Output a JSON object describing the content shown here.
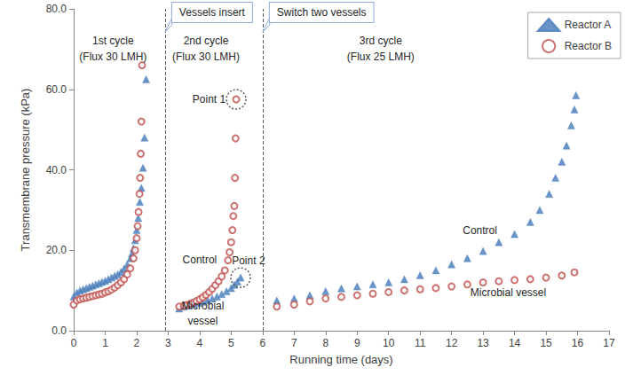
{
  "chart_data": {
    "type": "scatter",
    "x_label": "Running time (days)",
    "y_label": "Transmembrane pressure (kPa)",
    "xlim": [
      0,
      17
    ],
    "xticks": [
      0,
      1,
      2,
      3,
      4,
      5,
      6,
      7,
      8,
      9,
      10,
      11,
      12,
      13,
      14,
      15,
      16,
      17
    ],
    "ylim": [
      0,
      80
    ],
    "yticks": [
      {
        "value": 0,
        "label": "0.0"
      },
      {
        "value": 20,
        "label": "20.0"
      },
      {
        "value": 40,
        "label": "40.0"
      },
      {
        "value": 60,
        "label": "60.0"
      },
      {
        "value": 80,
        "label": "80.0"
      }
    ],
    "grid": false,
    "legend": "upper right",
    "series": [
      {
        "name": "Reactor A",
        "color": "#4f81bd",
        "marker": "triangle",
        "x": [
          0,
          0.1,
          0.2,
          0.3,
          0.4,
          0.5,
          0.6,
          0.7,
          0.8,
          0.9,
          1.0,
          1.1,
          1.2,
          1.3,
          1.4,
          1.5,
          1.6,
          1.7,
          1.8,
          1.85,
          1.9,
          1.95,
          2.0,
          2.05,
          2.1,
          2.15,
          2.2,
          2.25,
          2.3,
          3.35,
          3.5,
          3.65,
          3.8,
          3.95,
          4.1,
          4.25,
          4.4,
          4.55,
          4.7,
          4.85,
          5.0,
          5.1,
          5.2,
          5.3,
          6.45,
          7,
          7.5,
          8,
          8.5,
          9,
          9.5,
          10,
          10.5,
          11,
          11.5,
          12,
          12.5,
          13,
          13.5,
          14,
          14.5,
          14.8,
          15.1,
          15.3,
          15.5,
          15.65,
          15.8,
          15.9,
          15.95
        ],
        "values": [
          8.5,
          9.5,
          10,
          10.3,
          10.6,
          10.9,
          11.2,
          11.5,
          11.8,
          12.1,
          12.4,
          12.8,
          13.2,
          13.6,
          14.0,
          14.6,
          15.4,
          16.5,
          18.0,
          19.2,
          20.5,
          22.5,
          25.0,
          28.0,
          32.0,
          35.5,
          40.5,
          48.0,
          62.5,
          5.5,
          6.0,
          6.3,
          6.6,
          6.9,
          7.2,
          7.6,
          8.0,
          8.5,
          9.1,
          9.8,
          10.6,
          11.4,
          12.2,
          13.2,
          7.5,
          8.0,
          8.8,
          9.8,
          10.5,
          11.0,
          11.5,
          12.0,
          12.8,
          13.8,
          15.0,
          16.5,
          18.0,
          19.8,
          22.0,
          24.0,
          27.0,
          30.0,
          34.0,
          38.0,
          42.0,
          46.0,
          51.0,
          55.0,
          58.5
        ]
      },
      {
        "name": "Reactor B",
        "color": "#c0504d",
        "marker": "emptyCircle",
        "x": [
          0,
          0.1,
          0.2,
          0.3,
          0.4,
          0.5,
          0.6,
          0.7,
          0.8,
          0.9,
          1.0,
          1.1,
          1.2,
          1.3,
          1.4,
          1.5,
          1.6,
          1.7,
          1.8,
          1.9,
          1.95,
          2.0,
          2.03,
          2.06,
          2.09,
          2.11,
          2.13,
          2.15,
          2.17,
          3.35,
          3.5,
          3.6,
          3.7,
          3.8,
          3.9,
          4.0,
          4.1,
          4.2,
          4.3,
          4.4,
          4.5,
          4.6,
          4.7,
          4.8,
          4.9,
          4.95,
          5.0,
          5.04,
          5.07,
          5.1,
          5.12,
          5.14,
          5.16,
          6.45,
          7,
          7.5,
          8,
          8.5,
          9,
          9.5,
          10,
          10.5,
          11,
          11.5,
          12,
          12.5,
          13,
          13.5,
          14,
          14.5,
          15,
          15.5,
          15.9
        ],
        "values": [
          6.5,
          7.5,
          7.8,
          8.0,
          8.2,
          8.4,
          8.6,
          8.8,
          9.0,
          9.2,
          9.5,
          9.8,
          10.2,
          10.7,
          11.3,
          12.0,
          12.8,
          14.0,
          15.5,
          18.0,
          20.0,
          23.0,
          26.0,
          29.5,
          34.0,
          38.0,
          44.0,
          52.0,
          66.0,
          6.0,
          6.2,
          6.4,
          6.7,
          7.0,
          7.4,
          7.8,
          8.3,
          8.9,
          9.6,
          10.4,
          11.3,
          12.3,
          13.5,
          15.0,
          17.5,
          19.5,
          22.0,
          25.0,
          28.5,
          31.0,
          38.0,
          47.8,
          57.5,
          6.0,
          6.5,
          7.3,
          8.0,
          8.4,
          8.8,
          9.2,
          9.6,
          10.0,
          10.3,
          10.6,
          11.0,
          11.5,
          12.0,
          12.3,
          12.6,
          12.8,
          13.2,
          13.7,
          14.5
        ]
      }
    ],
    "cycle_boundaries": [
      {
        "x": 2.9,
        "label": "Vessels insert"
      },
      {
        "x": 6.0,
        "label": "Switch two vessels"
      }
    ],
    "annotations": [
      {
        "text": "1st cycle",
        "x": 1.25,
        "y": 72
      },
      {
        "text": "(Flux 30 LMH)",
        "x": 1.25,
        "y": 68
      },
      {
        "text": "2nd cycle",
        "x": 4.2,
        "y": 72
      },
      {
        "text": "(Flux 30 LMH)",
        "x": 4.2,
        "y": 68
      },
      {
        "text": "3rd cycle",
        "x": 9.75,
        "y": 72
      },
      {
        "text": "(Flux 25 LMH)",
        "x": 9.75,
        "y": 68
      },
      {
        "text": "Point 1",
        "x": 4.3,
        "y": 57.5,
        "target": [
          5.16,
          57.5
        ]
      },
      {
        "text": "Point 2",
        "x": 5.55,
        "y": 17.5,
        "target": [
          5.3,
          13.2
        ]
      },
      {
        "text": "Control",
        "x": 4.0,
        "y": 17.6
      },
      {
        "text": "Microbial",
        "x": 4.1,
        "y": 6.2
      },
      {
        "text": "vessel",
        "x": 4.1,
        "y": 2.4
      },
      {
        "text": "Control",
        "x": 12.9,
        "y": 25
      },
      {
        "text": "Microbial vessel",
        "x": 13.8,
        "y": 9.5
      }
    ]
  }
}
